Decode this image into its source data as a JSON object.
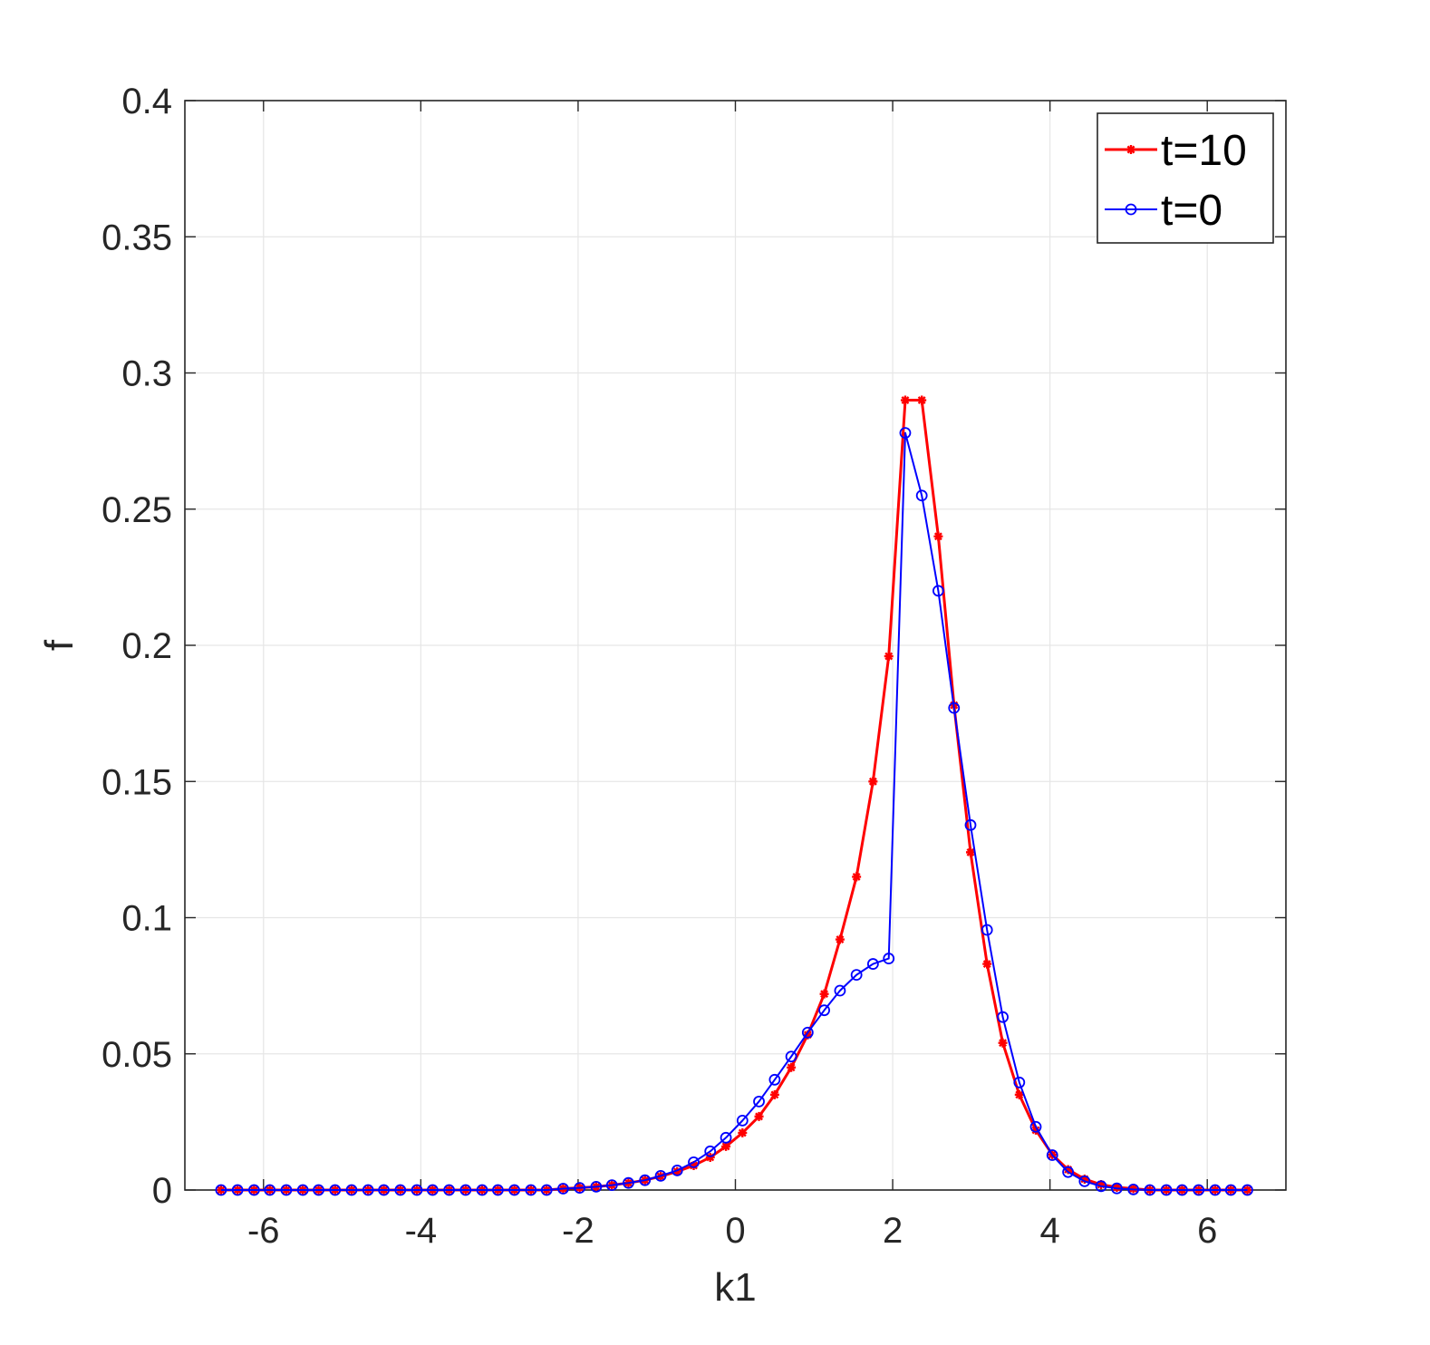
{
  "chart_data": {
    "type": "line",
    "xlabel": "k1",
    "ylabel": "f",
    "xlim": [
      -7,
      7
    ],
    "ylim": [
      0,
      0.4
    ],
    "xticks": [
      -6,
      -4,
      -2,
      0,
      2,
      4,
      6
    ],
    "xtick_labels": [
      "-6",
      "-4",
      "-2",
      "0",
      "2",
      "4",
      "6"
    ],
    "yticks": [
      0,
      0.05,
      0.1,
      0.15,
      0.2,
      0.25,
      0.3,
      0.35,
      0.4
    ],
    "ytick_labels": [
      "0",
      "0.05",
      "0.1",
      "0.15",
      "0.2",
      "0.25",
      "0.3",
      "0.35",
      "0.4"
    ],
    "grid": true,
    "legend_position": "top-right",
    "x": [
      -6.54,
      -6.33,
      -6.12,
      -5.92,
      -5.71,
      -5.5,
      -5.3,
      -5.09,
      -4.88,
      -4.67,
      -4.47,
      -4.26,
      -4.05,
      -3.85,
      -3.64,
      -3.43,
      -3.22,
      -3.02,
      -2.81,
      -2.6,
      -2.4,
      -2.19,
      -1.98,
      -1.77,
      -1.57,
      -1.36,
      -1.15,
      -0.95,
      -0.74,
      -0.53,
      -0.32,
      -0.12,
      0.09,
      0.3,
      0.5,
      0.71,
      0.92,
      1.13,
      1.33,
      1.54,
      1.75,
      1.95,
      2.16,
      2.37,
      2.58,
      2.78,
      2.99,
      3.2,
      3.4,
      3.61,
      3.82,
      4.03,
      4.23,
      4.44,
      4.65,
      4.85,
      5.06,
      5.27,
      5.48,
      5.68,
      5.89,
      6.1,
      6.3,
      6.51
    ],
    "series": [
      {
        "name": "t=10",
        "color": "#ff0000",
        "marker": "asterisk",
        "values": [
          0,
          0,
          0,
          0,
          0,
          0,
          0,
          0,
          0,
          0,
          0,
          0,
          0,
          0,
          0,
          0,
          0,
          0,
          0,
          0,
          0,
          0.0005,
          0.0008,
          0.0012,
          0.0018,
          0.0026,
          0.0036,
          0.005,
          0.0068,
          0.009,
          0.012,
          0.016,
          0.021,
          0.027,
          0.035,
          0.045,
          0.057,
          0.072,
          0.092,
          0.115,
          0.15,
          0.196,
          0.29,
          0.29,
          0.24,
          0.178,
          0.124,
          0.083,
          0.054,
          0.035,
          0.022,
          0.013,
          0.0075,
          0.004,
          0.002,
          0.001,
          0.0005,
          0,
          0,
          0,
          0,
          0,
          0,
          0
        ]
      },
      {
        "name": "t=0",
        "color": "#0000ff",
        "marker": "circle",
        "values": [
          0,
          0,
          0,
          0,
          0,
          0,
          0,
          0,
          0,
          0,
          0,
          0,
          0,
          0,
          0,
          0,
          0,
          0,
          0,
          0,
          0,
          0.0005,
          0.0008,
          0.0012,
          0.0018,
          0.0026,
          0.0036,
          0.0052,
          0.0072,
          0.0102,
          0.0142,
          0.0192,
          0.0255,
          0.0325,
          0.0405,
          0.049,
          0.0578,
          0.066,
          0.0732,
          0.079,
          0.083,
          0.085,
          0.278,
          0.255,
          0.22,
          0.177,
          0.134,
          0.0955,
          0.0635,
          0.0395,
          0.0232,
          0.0128,
          0.0066,
          0.0032,
          0.0014,
          0.0006,
          0.0002,
          0,
          0,
          0,
          0,
          0,
          0,
          0
        ]
      }
    ]
  }
}
